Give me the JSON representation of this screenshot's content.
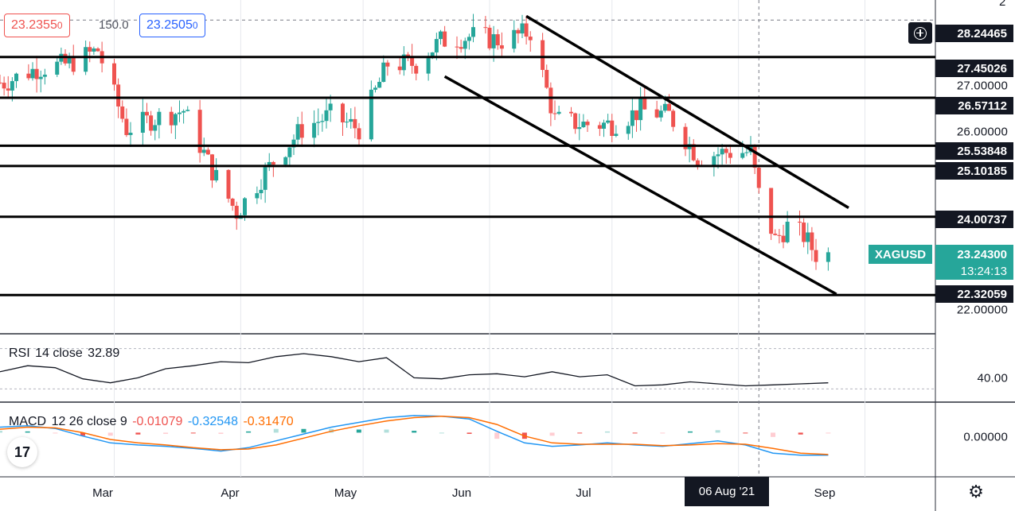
{
  "quote": {
    "sell": "23.2355",
    "sell_suffix": "0",
    "spread": "150.0",
    "buy": "23.2505",
    "buy_suffix": "0"
  },
  "symbol": "XAGUSD",
  "current_price": "23.24300",
  "countdown": "13:24:13",
  "crosshair": {
    "price": "28.24465",
    "date": "06 Aug '21"
  },
  "top_axis_fragment": "2",
  "price_axis_labels": [
    "27.00000",
    "26.00000",
    "22.00000"
  ],
  "month_labels": [
    "Mar",
    "Apr",
    "May",
    "Jun",
    "Jul",
    "Sep"
  ],
  "rsi": {
    "name": "RSI",
    "params": "14 close",
    "value": "32.89",
    "axis_label": "40.00",
    "color": "#131722"
  },
  "macd": {
    "name": "MACD",
    "params": "12 26 close 9",
    "histogram": "-0.01079",
    "macd_line": "-0.32548",
    "signal": "-0.31470",
    "axis_label": "0.00000",
    "colors": {
      "histogram": "#ef5350",
      "macd_line": "#2196f3",
      "signal": "#ff6d00"
    }
  },
  "colors": {
    "up_candle": "#26a69a",
    "down_candle": "#ef5350",
    "level_line": "#000000",
    "channel_line": "#000000"
  },
  "icons": {
    "logo": "tradingview-logo-icon",
    "settings": "gear-icon",
    "crosshair": "plus-circle-icon"
  },
  "chart_data": {
    "type": "candlestick",
    "symbol": "XAGUSD",
    "x_axis_ticks": [
      "Mar",
      "Apr",
      "May",
      "Jun",
      "Jul",
      "06 Aug '21",
      "Sep"
    ],
    "y_axis_ticks": [
      "27.00000",
      "26.00000",
      "22.00000"
    ],
    "ylim": [
      21.6,
      28.9
    ],
    "horizontal_levels": [
      "28.24465",
      "27.45026",
      "26.57112",
      "25.53848",
      "25.10185",
      "24.00737",
      "22.32059"
    ],
    "channel": {
      "upper": [
        {
          "date": "2021-06-10",
          "price": 28.33
        },
        {
          "date": "2021-08-28",
          "price": 24.2
        }
      ],
      "lower": [
        {
          "date": "2021-05-21",
          "price": 27.03
        },
        {
          "date": "2021-08-25",
          "price": 22.34
        }
      ]
    },
    "closes_sampled": [
      {
        "date": "2021-02-02",
        "close": 26.9
      },
      {
        "date": "2021-02-10",
        "close": 27.2
      },
      {
        "date": "2021-02-18",
        "close": 27.3
      },
      {
        "date": "2021-02-25",
        "close": 27.6
      },
      {
        "date": "2021-03-04",
        "close": 25.9
      },
      {
        "date": "2021-03-10",
        "close": 26.1
      },
      {
        "date": "2021-03-18",
        "close": 26.3
      },
      {
        "date": "2021-03-25",
        "close": 25.0
      },
      {
        "date": "2021-03-31",
        "close": 24.1
      },
      {
        "date": "2021-04-09",
        "close": 25.2
      },
      {
        "date": "2021-04-16",
        "close": 25.9
      },
      {
        "date": "2021-04-23",
        "close": 26.2
      },
      {
        "date": "2021-04-30",
        "close": 25.9
      },
      {
        "date": "2021-05-07",
        "close": 27.3
      },
      {
        "date": "2021-05-14",
        "close": 27.3
      },
      {
        "date": "2021-05-20",
        "close": 27.8
      },
      {
        "date": "2021-05-28",
        "close": 27.9
      },
      {
        "date": "2021-06-04",
        "close": 27.8
      },
      {
        "date": "2021-06-11",
        "close": 28.0
      },
      {
        "date": "2021-06-17",
        "close": 26.1
      },
      {
        "date": "2021-06-24",
        "close": 26.0
      },
      {
        "date": "2021-07-01",
        "close": 26.0
      },
      {
        "date": "2021-07-08",
        "close": 26.3
      },
      {
        "date": "2021-07-15",
        "close": 26.2
      },
      {
        "date": "2021-07-22",
        "close": 25.3
      },
      {
        "date": "2021-07-29",
        "close": 25.4
      },
      {
        "date": "2021-08-04",
        "close": 25.4
      },
      {
        "date": "2021-08-06",
        "close": 24.5
      },
      {
        "date": "2021-08-10",
        "close": 23.5
      },
      {
        "date": "2021-08-13",
        "close": 23.8
      },
      {
        "date": "2021-08-17",
        "close": 23.6
      },
      {
        "date": "2021-08-20",
        "close": 23.2
      },
      {
        "date": "2021-08-23",
        "close": 23.243
      }
    ],
    "rsi_series": {
      "name": "RSI",
      "ylim": [
        20,
        80
      ],
      "values_sampled": [
        47,
        53,
        51,
        40,
        36,
        41,
        50,
        53,
        57,
        56,
        62,
        65,
        62,
        57,
        61,
        41,
        40,
        44,
        45,
        42,
        47,
        42,
        44,
        33,
        34,
        37,
        35,
        33,
        34,
        35,
        36
      ]
    },
    "macd_series": {
      "ylim": [
        -0.6,
        0.4
      ],
      "macd": [
        0.08,
        0.1,
        0.06,
        -0.05,
        -0.15,
        -0.18,
        -0.2,
        -0.23,
        -0.27,
        -0.22,
        -0.12,
        -0.02,
        0.08,
        0.15,
        0.22,
        0.25,
        0.24,
        0.2,
        0.02,
        -0.15,
        -0.2,
        -0.18,
        -0.15,
        -0.18,
        -0.2,
        -0.16,
        -0.12,
        -0.18,
        -0.3,
        -0.33,
        -0.33
      ],
      "signal": [
        0.05,
        0.08,
        0.07,
        0.0,
        -0.1,
        -0.15,
        -0.18,
        -0.22,
        -0.25,
        -0.24,
        -0.18,
        -0.08,
        0.02,
        0.1,
        0.17,
        0.22,
        0.24,
        0.22,
        0.12,
        -0.05,
        -0.15,
        -0.17,
        -0.17,
        -0.17,
        -0.19,
        -0.18,
        -0.16,
        -0.17,
        -0.23,
        -0.3,
        -0.32
      ]
    }
  }
}
